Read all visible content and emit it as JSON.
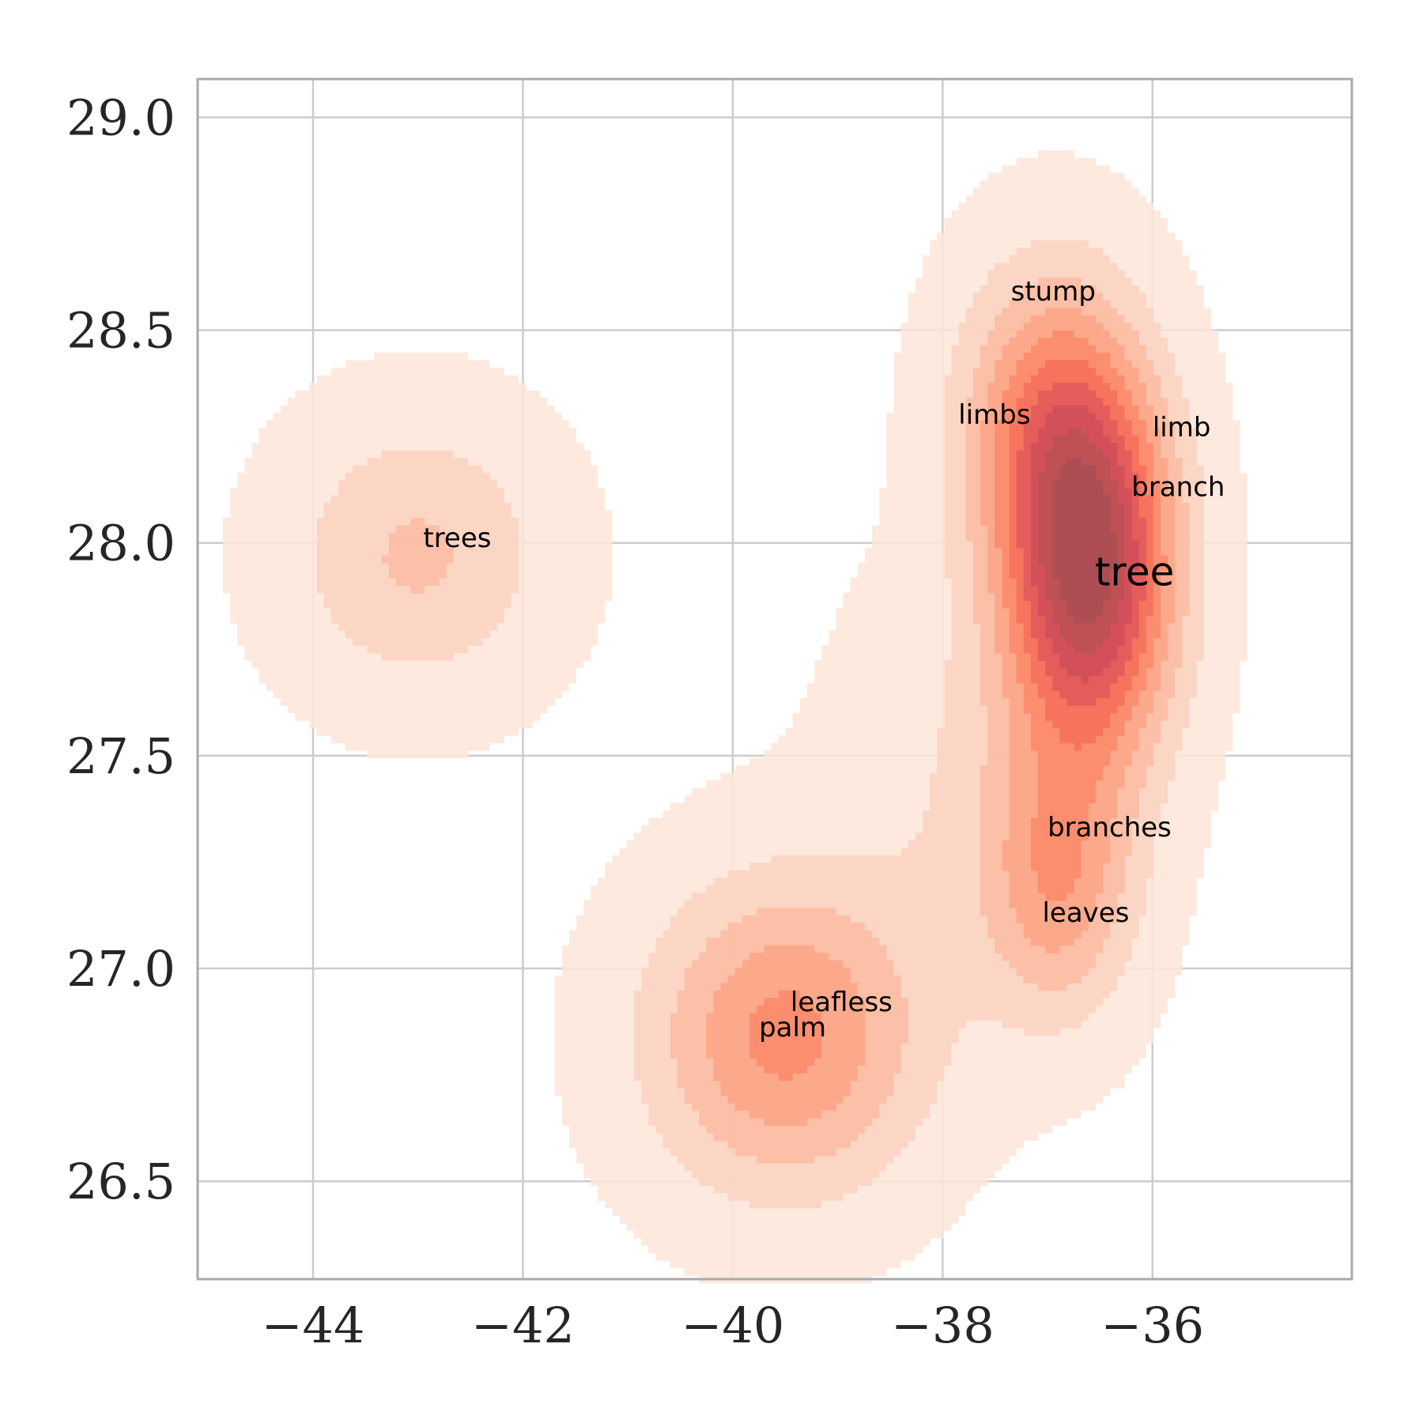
{
  "chart_data": {
    "type": "contour",
    "title": "",
    "xlabel": "",
    "ylabel": "",
    "xlim": [
      -45.1,
      -34.1
    ],
    "ylim": [
      26.27,
      29.09
    ],
    "x_ticks": [
      -44,
      -42,
      -40,
      -38,
      -36
    ],
    "x_tick_labels": [
      "−44",
      "−42",
      "−40",
      "−38",
      "−36"
    ],
    "y_ticks": [
      26.5,
      27.0,
      27.5,
      28.0,
      28.5,
      29.0
    ],
    "y_tick_labels": [
      "26.5",
      "27.0",
      "27.5",
      "28.0",
      "28.5",
      "29.0"
    ],
    "grid": true,
    "colormap": [
      "#fee5d9",
      "#fcd2c1",
      "#fcbba1",
      "#fca486",
      "#fb8a6a",
      "#f4705a",
      "#e0595a",
      "#d04d5a",
      "#bb5155",
      "#a84d55"
    ],
    "density_components": [
      {
        "x": -43.0,
        "y": 27.97,
        "sx": 0.85,
        "sy": 0.22,
        "w": 0.55
      },
      {
        "x": -36.6,
        "y": 27.93,
        "sx": 0.55,
        "sy": 0.3,
        "w": 2.1
      },
      {
        "x": -37.0,
        "y": 28.3,
        "sx": 0.6,
        "sy": 0.25,
        "w": 0.9
      },
      {
        "x": -36.9,
        "y": 27.2,
        "sx": 0.5,
        "sy": 0.22,
        "w": 0.8
      },
      {
        "x": -39.5,
        "y": 26.84,
        "sx": 0.9,
        "sy": 0.25,
        "w": 1.05
      },
      {
        "x": -37.7,
        "y": 27.45,
        "sx": 0.9,
        "sy": 0.35,
        "w": 0.25
      }
    ],
    "points": [
      {
        "word": "tree",
        "x": -36.55,
        "y": 27.9,
        "size": 50
      },
      {
        "word": "stump",
        "x": -37.35,
        "y": 28.57,
        "size": 34
      },
      {
        "word": "limbs",
        "x": -37.85,
        "y": 28.28,
        "size": 34
      },
      {
        "word": "limb",
        "x": -36.0,
        "y": 28.25,
        "size": 34
      },
      {
        "word": "branch",
        "x": -36.2,
        "y": 28.11,
        "size": 34
      },
      {
        "word": "trees",
        "x": -42.95,
        "y": 27.99,
        "size": 34
      },
      {
        "word": "branches",
        "x": -37.0,
        "y": 27.31,
        "size": 34
      },
      {
        "word": "leaves",
        "x": -37.05,
        "y": 27.11,
        "size": 34
      },
      {
        "word": "leafless",
        "x": -39.45,
        "y": 26.9,
        "size": 34
      },
      {
        "word": "palm",
        "x": -39.75,
        "y": 26.84,
        "size": 34
      }
    ]
  }
}
